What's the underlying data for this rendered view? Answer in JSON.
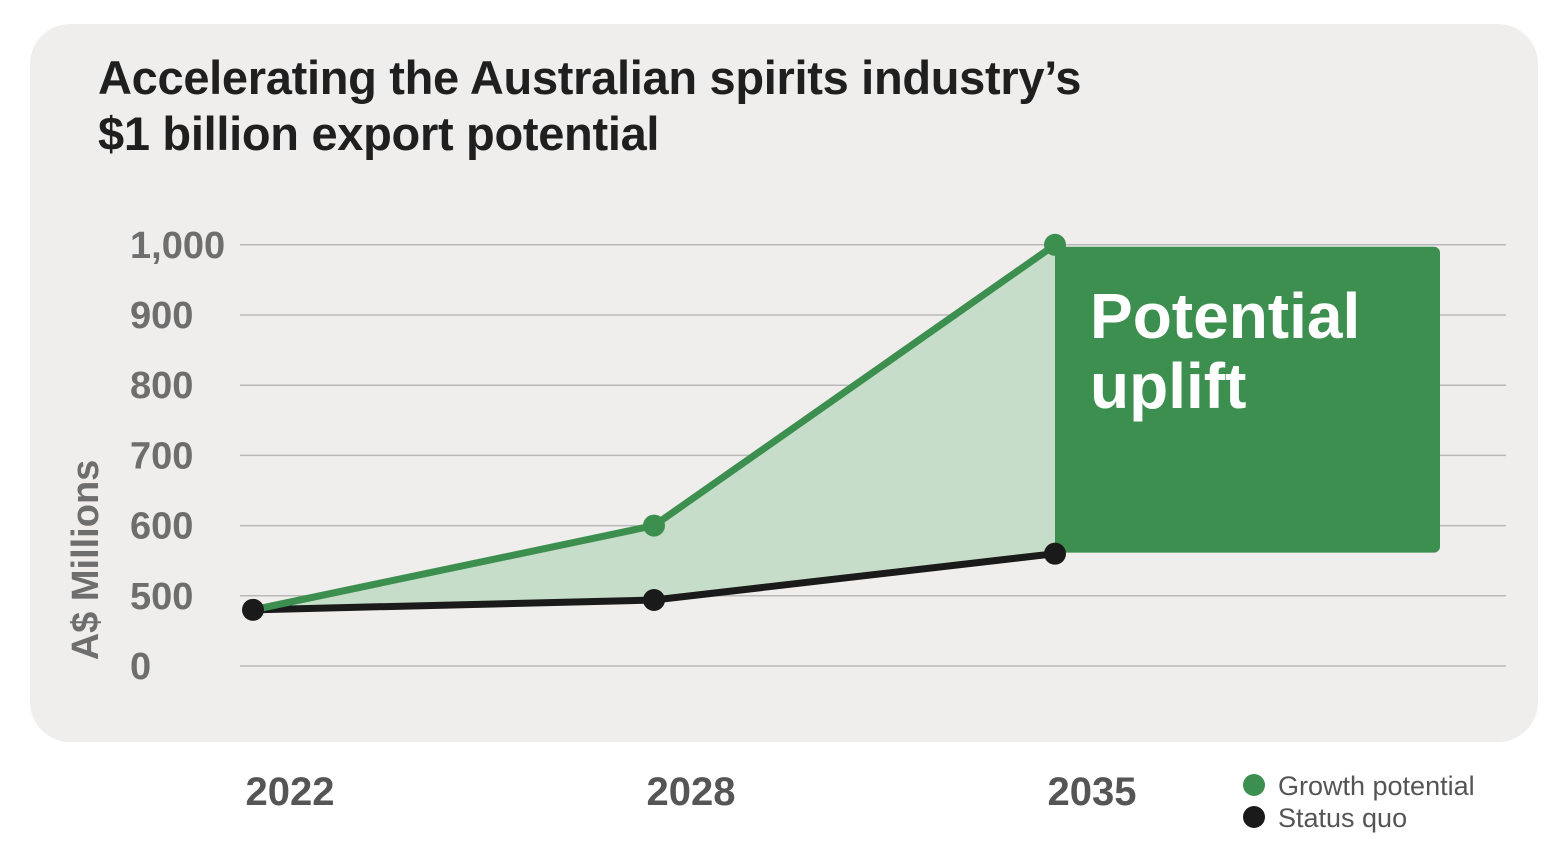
{
  "chart_data": {
    "type": "line",
    "title_lines": [
      "Accelerating the Australian spirits industry’s",
      "$1 billion export potential"
    ],
    "ylabel": "A$ Millions",
    "y_tick_labels": [
      "0",
      "500",
      "600",
      "700",
      "800",
      "900",
      "1,000"
    ],
    "categories": [
      "2022",
      "2028",
      "2035"
    ],
    "series": [
      {
        "name": "Growth potential",
        "values": [
          400,
          600,
          1000
        ],
        "color": "#3d8f4f"
      },
      {
        "name": "Status quo",
        "values": [
          400,
          470,
          560
        ],
        "color": "#1a1a1a"
      }
    ],
    "shaded_area": {
      "between": [
        "Growth potential",
        "Status quo"
      ],
      "color": "#c6ddc9"
    },
    "annotation": {
      "lines": [
        "Potential",
        "uplift"
      ],
      "color": "#3d8f4f"
    },
    "grid": true,
    "legend": "bottom-right"
  }
}
